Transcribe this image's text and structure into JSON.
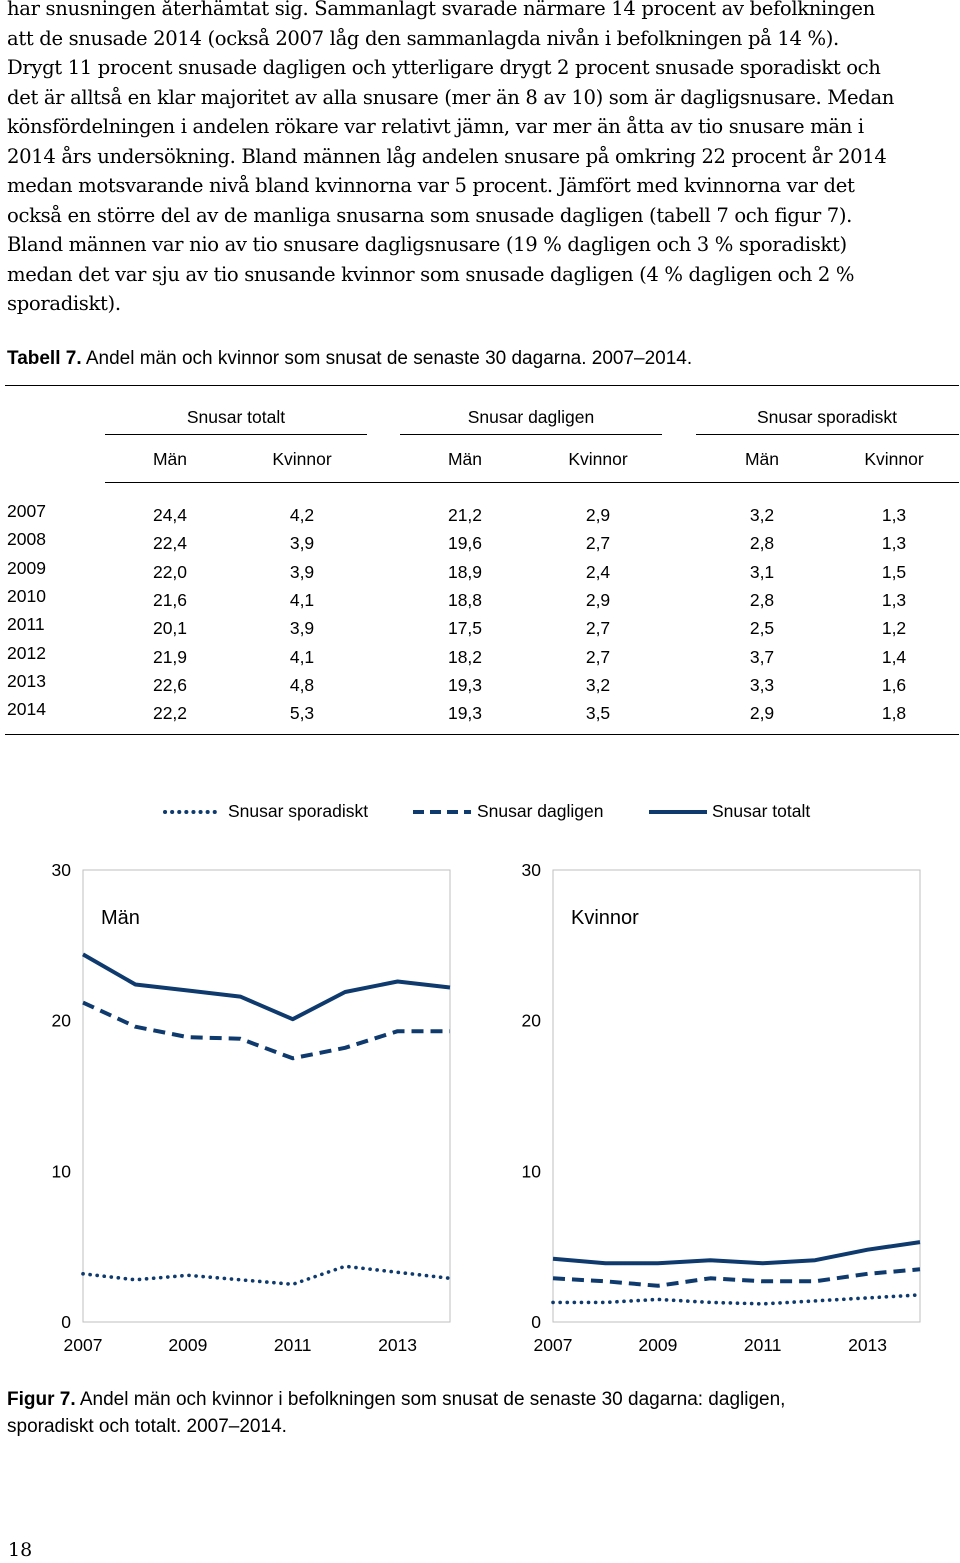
{
  "body_text": {
    "lines": [
      "har snusningen återhämtat sig. Sammanlagt svarade närmare 14 procent av befolkningen",
      "att de snusade 2014 (också 2007 låg den sammanlagda nivån i befolkningen på 14 %).",
      "Drygt 11 procent snusade dagligen och ytterligare drygt 2 procent snusade sporadiskt och",
      "det är alltså en klar majoritet av alla snusare (mer än 8 av 10) som är dagligsnusare. Medan",
      "könsfördelningen i andelen rökare var relativt jämn, var mer än åtta av tio snusare män i",
      "2014 års undersökning. Bland männen låg andelen snusare på omkring 22 procent år 2014",
      "medan motsvarande nivå bland kvinnorna var 5 procent. Jämfört med kvinnorna var det",
      "också en större del av de manliga snusarna som snusade dagligen (tabell 7 och figur 7).",
      "Bland männen var nio av tio snusare dagligsnusare (19 % dagligen och 3 % sporadiskt)",
      "medan det var sju av tio snusande kvinnor som snusade dagligen (4 % dagligen och 2 %",
      "sporadiskt)."
    ]
  },
  "table": {
    "caption_label": "Tabell 7.",
    "caption_text": " Andel män och kvinnor som snusat de senaste 30 dagarna. 2007–2014.",
    "groups": [
      "Snusar totalt",
      "Snusar dagligen",
      "Snusar sporadiskt"
    ],
    "subheaders": [
      "Män",
      "Kvinnor",
      "Män",
      "Kvinnor",
      "Män",
      "Kvinnor"
    ],
    "rows": [
      {
        "year": "2007",
        "values": [
          "24,4",
          "4,2",
          "21,2",
          "2,9",
          "3,2",
          "1,3"
        ]
      },
      {
        "year": "2008",
        "values": [
          "22,4",
          "3,9",
          "19,6",
          "2,7",
          "2,8",
          "1,3"
        ]
      },
      {
        "year": "2009",
        "values": [
          "22,0",
          "3,9",
          "18,9",
          "2,4",
          "3,1",
          "1,5"
        ]
      },
      {
        "year": "2010",
        "values": [
          "21,6",
          "4,1",
          "18,8",
          "2,9",
          "2,8",
          "1,3"
        ]
      },
      {
        "year": "2011",
        "values": [
          "20,1",
          "3,9",
          "17,5",
          "2,7",
          "2,5",
          "1,2"
        ]
      },
      {
        "year": "2012",
        "values": [
          "21,9",
          "4,1",
          "18,2",
          "2,7",
          "3,7",
          "1,4"
        ]
      },
      {
        "year": "2013",
        "values": [
          "22,6",
          "4,8",
          "19,3",
          "3,2",
          "3,3",
          "1,6"
        ]
      },
      {
        "year": "2014",
        "values": [
          "22,2",
          "5,3",
          "19,3",
          "3,5",
          "2,9",
          "1,8"
        ]
      }
    ]
  },
  "legend": {
    "sporadic": "Snusar sporadiskt",
    "daily": "Snusar dagligen",
    "total": "Snusar totalt"
  },
  "colors": {
    "line": "#0e3a6e"
  },
  "chart_data": [
    {
      "type": "line",
      "title": "Män",
      "x": [
        2007,
        2008,
        2009,
        2010,
        2011,
        2012,
        2013,
        2014
      ],
      "x_tick_labels": [
        "2007",
        "2009",
        "2011",
        "2013"
      ],
      "y_tick_labels": [
        "0",
        "10",
        "20",
        "30"
      ],
      "ylim": [
        0,
        30
      ],
      "series": [
        {
          "name": "Snusar totalt",
          "style": "solid",
          "values": [
            24.4,
            22.4,
            22.0,
            21.6,
            20.1,
            21.9,
            22.6,
            22.2
          ]
        },
        {
          "name": "Snusar dagligen",
          "style": "dashed",
          "values": [
            21.2,
            19.6,
            18.9,
            18.8,
            17.5,
            18.2,
            19.3,
            19.3
          ]
        },
        {
          "name": "Snusar sporadiskt",
          "style": "dotted",
          "values": [
            3.2,
            2.8,
            3.1,
            2.8,
            2.5,
            3.7,
            3.3,
            2.9
          ]
        }
      ]
    },
    {
      "type": "line",
      "title": "Kvinnor",
      "x": [
        2007,
        2008,
        2009,
        2010,
        2011,
        2012,
        2013,
        2014
      ],
      "x_tick_labels": [
        "2007",
        "2009",
        "2011",
        "2013"
      ],
      "y_tick_labels": [
        "0",
        "10",
        "20",
        "30"
      ],
      "ylim": [
        0,
        30
      ],
      "series": [
        {
          "name": "Snusar totalt",
          "style": "solid",
          "values": [
            4.2,
            3.9,
            3.9,
            4.1,
            3.9,
            4.1,
            4.8,
            5.3
          ]
        },
        {
          "name": "Snusar dagligen",
          "style": "dashed",
          "values": [
            2.9,
            2.7,
            2.4,
            2.9,
            2.7,
            2.7,
            3.2,
            3.5
          ]
        },
        {
          "name": "Snusar sporadiskt",
          "style": "dotted",
          "values": [
            1.3,
            1.3,
            1.5,
            1.3,
            1.2,
            1.4,
            1.6,
            1.8
          ]
        }
      ]
    }
  ],
  "figure": {
    "caption_label": "Figur 7.",
    "caption_text_1": " Andel män och kvinnor i befolkningen som snusat de senaste 30 dagarna: dagligen,",
    "caption_text_2": "sporadiskt och totalt. 2007–2014."
  },
  "page_number": "18"
}
